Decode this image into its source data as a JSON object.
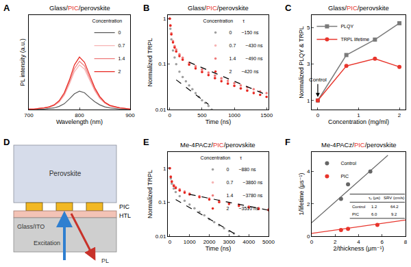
{
  "chart_data": [
    {
      "panel": "A",
      "type": "line",
      "title": "Glass/PIC/perovskite",
      "x_label": "Wavelength (nm)",
      "y_label": "PL intensity (a.u.)",
      "x": [
        700,
        710,
        720,
        730,
        740,
        750,
        760,
        770,
        780,
        790,
        800,
        810,
        820,
        830,
        840,
        850,
        860,
        870,
        880,
        890,
        900
      ],
      "xlim": [
        700,
        900
      ],
      "xticks": [
        700,
        800,
        900
      ],
      "ylim": [
        0,
        1.8
      ],
      "tick_labels": "x",
      "grid": false,
      "legend": "upper right",
      "legend_title": "Concentration",
      "series": [
        {
          "name": "0",
          "color": "#5a5a5a",
          "values": [
            0,
            0,
            0.01,
            0.01,
            0.02,
            0.03,
            0.06,
            0.11,
            0.2,
            0.3,
            0.35,
            0.32,
            0.23,
            0.15,
            0.09,
            0.05,
            0.03,
            0.02,
            0.01,
            0.01,
            0
          ]
        },
        {
          "name": "0.7",
          "color": "#f6b3b3",
          "values": [
            0.01,
            0.01,
            0.02,
            0.03,
            0.04,
            0.08,
            0.14,
            0.27,
            0.48,
            0.72,
            0.85,
            0.77,
            0.56,
            0.36,
            0.21,
            0.12,
            0.07,
            0.04,
            0.03,
            0.02,
            0.01
          ]
        },
        {
          "name": "1.4",
          "color": "#ef7a7a",
          "values": [
            0.01,
            0.01,
            0.02,
            0.03,
            0.05,
            0.08,
            0.16,
            0.29,
            0.52,
            0.78,
            0.92,
            0.83,
            0.61,
            0.39,
            0.23,
            0.13,
            0.07,
            0.05,
            0.03,
            0.02,
            0.01
          ]
        },
        {
          "name": "2",
          "color": "#e8271f",
          "values": [
            0.01,
            0.01,
            0.02,
            0.03,
            0.05,
            0.09,
            0.17,
            0.32,
            0.56,
            0.85,
            1.0,
            0.9,
            0.66,
            0.42,
            0.25,
            0.14,
            0.08,
            0.05,
            0.03,
            0.02,
            0.01
          ]
        }
      ]
    },
    {
      "panel": "B",
      "type": "scatter",
      "title": "Glass/PIC/perovskite",
      "x_label": "Time (ns)",
      "y_label": "Normalized TRPL",
      "log": "y",
      "xlim": [
        -30,
        1530
      ],
      "xticks": [
        0,
        500,
        1000,
        1500
      ],
      "ylim": [
        0.01,
        1.2
      ],
      "yticks": [
        0.01,
        0.1,
        1
      ],
      "grid": false,
      "legend": "upper right",
      "legend_title": "Concentration",
      "legend_value_title": "τ",
      "marker": "circle",
      "series": [
        {
          "name": "0",
          "tau": "~150 ns",
          "color": "#9e9e9e",
          "x": [
            0,
            10,
            25,
            50,
            75,
            100,
            150,
            200,
            250,
            300,
            350,
            400,
            450,
            500,
            550,
            600,
            650
          ],
          "values": [
            1,
            0.6,
            0.35,
            0.2,
            0.14,
            0.1,
            0.068,
            0.052,
            0.042,
            0.034,
            0.028,
            0.023,
            0.019,
            0.016,
            0.014,
            0.012,
            0.01
          ]
        },
        {
          "name": "0.7",
          "tau": "~430 ns",
          "color": "#f6b3b3",
          "x": [
            0,
            10,
            25,
            50,
            75,
            100,
            150,
            200,
            300,
            400,
            500,
            600,
            700,
            800,
            900,
            1000,
            1100,
            1200,
            1300,
            1400,
            1500
          ],
          "values": [
            1,
            0.7,
            0.46,
            0.31,
            0.24,
            0.2,
            0.158,
            0.132,
            0.103,
            0.085,
            0.071,
            0.061,
            0.052,
            0.045,
            0.039,
            0.034,
            0.03,
            0.027,
            0.024,
            0.021,
            0.019
          ]
        },
        {
          "name": "1.4",
          "tau": "~490 ns",
          "color": "#ef7a7a",
          "x": [
            0,
            10,
            25,
            50,
            75,
            100,
            150,
            200,
            300,
            400,
            500,
            600,
            700,
            800,
            900,
            1000,
            1100,
            1200,
            1300,
            1400,
            1500
          ],
          "values": [
            1,
            0.72,
            0.48,
            0.32,
            0.25,
            0.21,
            0.165,
            0.138,
            0.108,
            0.09,
            0.076,
            0.065,
            0.056,
            0.049,
            0.043,
            0.038,
            0.034,
            0.031,
            0.028,
            0.025,
            0.023
          ]
        },
        {
          "name": "2",
          "tau": "~420 ns",
          "color": "#e8271f",
          "x": [
            0,
            10,
            25,
            50,
            75,
            100,
            150,
            200,
            300,
            400,
            500,
            600,
            700,
            800,
            900,
            1000,
            1100,
            1200,
            1300,
            1400,
            1500
          ],
          "values": [
            1,
            0.7,
            0.45,
            0.3,
            0.23,
            0.19,
            0.15,
            0.125,
            0.097,
            0.08,
            0.067,
            0.057,
            0.049,
            0.042,
            0.037,
            0.033,
            0.029,
            0.026,
            0.023,
            0.021,
            0.019
          ]
        },
        {
          "type": "line",
          "line_style": "dashed",
          "color": "#000000",
          "x": [
            100,
            600
          ],
          "values": [
            0.045,
            0.013
          ]
        },
        {
          "type": "line",
          "line_style": "dashed",
          "color": "#000000",
          "x": [
            300,
            1500
          ],
          "values": [
            0.11,
            0.021
          ]
        }
      ]
    },
    {
      "panel": "C",
      "type": "scatter",
      "title": "Glass/PIC/perovskite",
      "x_label": "Concentration (mg/ml)",
      "y_label": "Normalized PLQY & TRPL",
      "x": [
        0,
        0.7,
        1.4,
        2
      ],
      "xlim": [
        -0.15,
        2.15
      ],
      "xticks": [
        0,
        1,
        2
      ],
      "ylim": [
        0.5,
        5.7
      ],
      "yticks": [
        1,
        3,
        5
      ],
      "grid": false,
      "legend": "upper left",
      "annotations": [
        {
          "text": "Control",
          "x": 0,
          "y": 1
        }
      ],
      "series": [
        {
          "name": "PLQY",
          "color": "#7a7a7a",
          "marker": "square",
          "line_style": "solid",
          "values": [
            1,
            3.5,
            4.35,
            5.25
          ]
        },
        {
          "name": "TRPL lifetime",
          "color": "#e8352c",
          "marker": "circle",
          "line_style": "solid",
          "values": [
            1,
            2.9,
            3.3,
            2.85
          ]
        }
      ]
    },
    {
      "panel": "E",
      "type": "scatter",
      "title": "Me-4PACz/PIC/perovskite",
      "x_label": "Time (ns)",
      "y_label": "Normalized TRPL",
      "log": "y",
      "xlim": [
        -100,
        5000
      ],
      "xticks": [
        0,
        1000,
        2000,
        3000,
        4000,
        5000
      ],
      "ylim": [
        0.01,
        3
      ],
      "yticks": [
        0.01,
        0.1,
        1
      ],
      "grid": false,
      "legend": "upper right",
      "legend_title": "Concentration",
      "legend_value_title": "τ",
      "marker": "circle",
      "series": [
        {
          "name": "0",
          "tau": "~880 ns",
          "color": "#9e9e9e",
          "x": [
            0,
            50,
            100,
            200,
            300,
            500,
            750,
            1000,
            1250,
            1500,
            1750,
            2000,
            2250,
            2500,
            2750,
            3000,
            3250,
            3500
          ],
          "values": [
            1,
            0.5,
            0.35,
            0.25,
            0.2,
            0.15,
            0.11,
            0.085,
            0.066,
            0.052,
            0.041,
            0.032,
            0.026,
            0.021,
            0.017,
            0.014,
            0.012,
            0.01
          ]
        },
        {
          "name": "0.7",
          "tau": "~3860 ns",
          "color": "#f6b3b3",
          "x": [
            0,
            50,
            100,
            200,
            300,
            500,
            750,
            1000,
            1500,
            2000,
            2500,
            3000,
            3500,
            4000,
            4500,
            5000
          ],
          "values": [
            1,
            0.56,
            0.41,
            0.31,
            0.27,
            0.23,
            0.2,
            0.175,
            0.145,
            0.124,
            0.106,
            0.092,
            0.081,
            0.073,
            0.066,
            0.06
          ]
        },
        {
          "name": "1.4",
          "tau": "~3780 ns",
          "color": "#ef7a7a",
          "x": [
            0,
            50,
            100,
            200,
            300,
            500,
            750,
            1000,
            1500,
            2000,
            2500,
            3000,
            3500,
            4000,
            4500,
            5000
          ],
          "values": [
            1,
            0.57,
            0.42,
            0.32,
            0.28,
            0.24,
            0.205,
            0.18,
            0.15,
            0.128,
            0.11,
            0.095,
            0.084,
            0.075,
            0.068,
            0.062
          ]
        },
        {
          "name": "2",
          "tau": "~3510 ns",
          "color": "#e8271f",
          "x": [
            0,
            50,
            100,
            200,
            300,
            500,
            750,
            1000,
            1500,
            2000,
            2500,
            3000,
            3500,
            4000,
            4500,
            5000
          ],
          "values": [
            1,
            0.55,
            0.4,
            0.3,
            0.26,
            0.22,
            0.19,
            0.17,
            0.14,
            0.12,
            0.1,
            0.088,
            0.078,
            0.07,
            0.063,
            0.058
          ]
        },
        {
          "type": "line",
          "line_style": "dashed",
          "color": "#000000",
          "x": [
            300,
            3500
          ],
          "values": [
            0.12,
            0.01
          ]
        },
        {
          "type": "line",
          "line_style": "dashed",
          "color": "#000000",
          "x": [
            1000,
            5000
          ],
          "values": [
            0.17,
            0.058
          ]
        }
      ]
    },
    {
      "panel": "F",
      "type": "scatter",
      "title": "Me-4PACz/PIC/perovskite",
      "x_label": "2/thickness (μm⁻¹)",
      "y_label": "1/lifetime (μs⁻¹)",
      "xlim": [
        0,
        8
      ],
      "xticks": [
        0,
        2,
        4,
        6,
        8
      ],
      "ylim": [
        0,
        5.2
      ],
      "yticks": [
        0,
        2,
        4
      ],
      "grid": false,
      "legend": "upper left",
      "marker": "circle",
      "series": [
        {
          "name": "Control",
          "color": "#666666",
          "x": [
            2.5,
            3.1,
            5
          ],
          "values": [
            2.3,
            3.2,
            4.0
          ]
        },
        {
          "name": "PIC",
          "color": "#e8352c",
          "x": [
            2.5,
            3.1,
            5.6
          ],
          "values": [
            0.38,
            0.45,
            0.7
          ]
        },
        {
          "type": "line",
          "line_style": "solid",
          "color": "#666666",
          "x": [
            0,
            6.5
          ],
          "values": [
            0.83,
            5.0
          ]
        },
        {
          "type": "line",
          "line_style": "solid",
          "color": "#e8352c",
          "x": [
            0,
            8
          ],
          "values": [
            0.17,
            1.0
          ]
        }
      ],
      "table": {
        "header": [
          "τ₀ (μs)",
          "SRV (cm/s)"
        ],
        "rows": [
          [
            "Control",
            "1.2",
            "64.2"
          ],
          [
            "PIC",
            "6.0",
            "9.2"
          ]
        ]
      }
    }
  ],
  "diagram": {
    "panel": "D",
    "labels": {
      "perovskite": "Perovskite",
      "pic": "PIC",
      "htl": "HTL",
      "substrate": "Glass/ITO",
      "excitation": "Excitation",
      "pl": "PL"
    }
  }
}
